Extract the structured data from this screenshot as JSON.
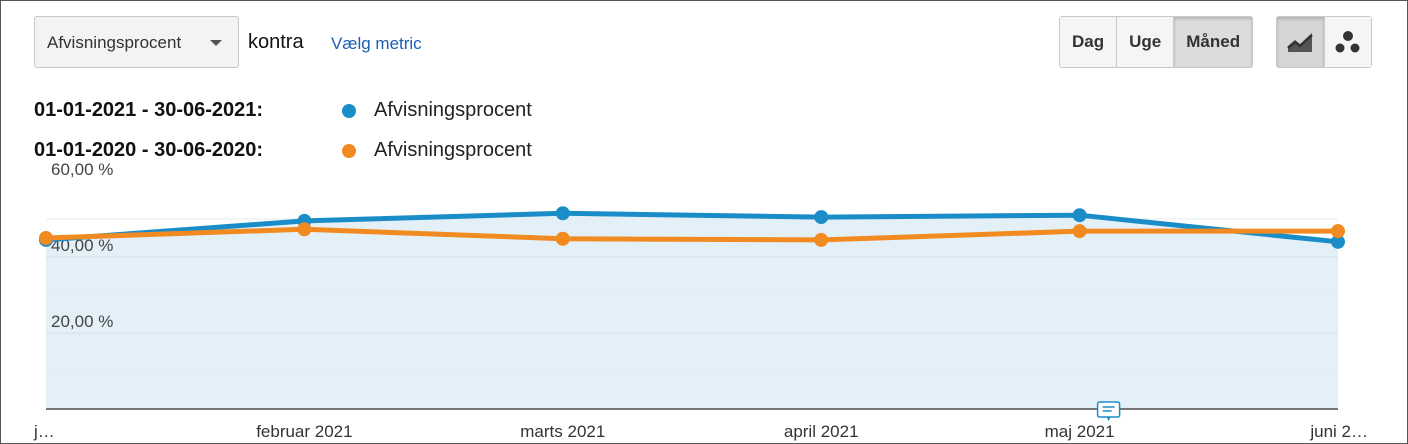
{
  "controls": {
    "metric_select": "Afvisningsprocent",
    "vs_text": "kontra",
    "select_metric_link": "Vælg metric",
    "periods": [
      {
        "label": "Dag",
        "active": false
      },
      {
        "label": "Uge",
        "active": false
      },
      {
        "label": "Måned",
        "active": true
      }
    ],
    "chart_types": [
      {
        "icon": "line-chart-icon",
        "active": true
      },
      {
        "icon": "bubble-chart-icon",
        "active": false
      }
    ]
  },
  "legend": [
    {
      "range": "01-01-2021 - 30-06-2021:",
      "metric": "Afvisningsprocent",
      "color": "#1a8dc8"
    },
    {
      "range": "01-01-2020 - 30-06-2020:",
      "metric": "Afvisningsprocent",
      "color": "#f28a22"
    }
  ],
  "chart_data": {
    "type": "line",
    "categories": [
      "j…",
      "februar 2021",
      "marts 2021",
      "april 2021",
      "maj 2021",
      "juni 2…"
    ],
    "y_tick_labels": [
      "20,00 %",
      "40,00 %",
      "60,00 %"
    ],
    "y_ticks": [
      20,
      40,
      60
    ],
    "ylim": [
      0,
      60
    ],
    "series": [
      {
        "name": "Afvisningsprocent",
        "period": "01-01-2021 - 30-06-2021",
        "color": "#1a8dc8",
        "fill": "#e4f0f7",
        "values": [
          44.5,
          49.5,
          51.5,
          50.5,
          51.0,
          44.0
        ]
      },
      {
        "name": "Afvisningsprocent",
        "period": "01-01-2020 - 30-06-2020",
        "color": "#f28a22",
        "values": [
          45.0,
          47.3,
          44.8,
          44.5,
          46.8,
          46.8
        ]
      }
    ],
    "grid": true,
    "annotation_icon": "annotation-icon"
  }
}
